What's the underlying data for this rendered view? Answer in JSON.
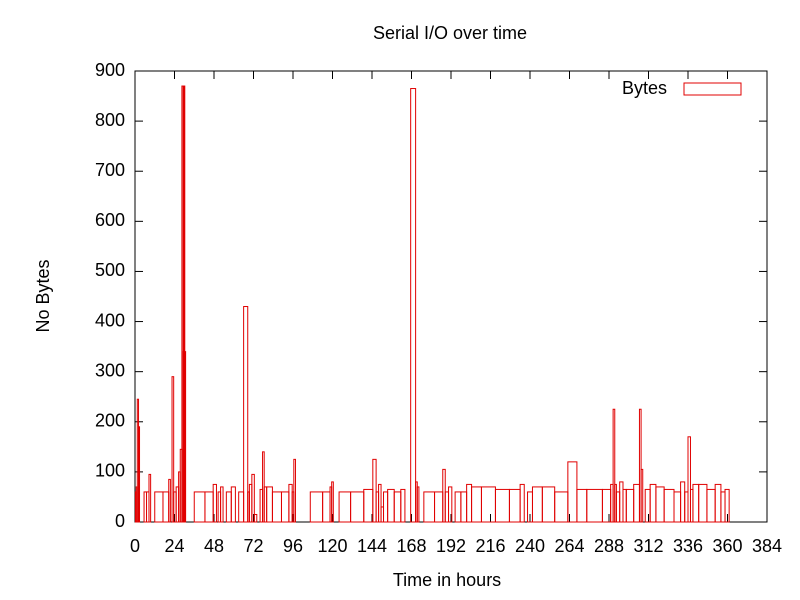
{
  "chart_data": {
    "type": "bar",
    "title": "Serial I/O over time",
    "x_label": "Time in hours",
    "y_label": "No Bytes",
    "series": [
      {
        "name": "Bytes",
        "color": "#e00000",
        "x": [
          0.5,
          1,
          1.8,
          2.5,
          3,
          5,
          6,
          8,
          9,
          10,
          14,
          20,
          21,
          22,
          23,
          24,
          26,
          27,
          28,
          29,
          29.5,
          30,
          30.5,
          31,
          33,
          39,
          46,
          49,
          50,
          51,
          53,
          54,
          57,
          60,
          62,
          64,
          68,
          69,
          70,
          72,
          73,
          75,
          77,
          78,
          79,
          81,
          86,
          92,
          95,
          96,
          97,
          98,
          103,
          110,
          118,
          119,
          120,
          121,
          127,
          135,
          143,
          146,
          147,
          149,
          150,
          152,
          155,
          160,
          163,
          165,
          170,
          171,
          172,
          173,
          178,
          186,
          188,
          189,
          192,
          193,
          196,
          200,
          203,
          206,
          215,
          223,
          232,
          236,
          237,
          240,
          243,
          252,
          258,
          268,
          269,
          280,
          288,
          290,
          291,
          292,
          293,
          296,
          297,
          300,
          306,
          307,
          308,
          309,
          311,
          315,
          318,
          325,
          330,
          333,
          335,
          337,
          338,
          340,
          345,
          350,
          355,
          357,
          360,
          362
        ],
        "values": [
          60,
          70,
          245,
          190,
          0,
          0,
          60,
          60,
          95,
          0,
          60,
          60,
          85,
          0,
          290,
          60,
          70,
          100,
          145,
          870,
          340,
          870,
          340,
          0,
          0,
          60,
          60,
          75,
          0,
          60,
          70,
          0,
          60,
          70,
          0,
          60,
          430,
          60,
          75,
          95,
          15,
          0,
          65,
          140,
          70,
          70,
          60,
          60,
          75,
          60,
          125,
          0,
          0,
          60,
          60,
          70,
          80,
          0,
          60,
          60,
          65,
          125,
          60,
          75,
          30,
          60,
          65,
          60,
          65,
          0,
          865,
          80,
          70,
          0,
          60,
          60,
          105,
          60,
          70,
          0,
          60,
          60,
          75,
          70,
          70,
          65,
          65,
          75,
          0,
          60,
          70,
          70,
          60,
          120,
          65,
          65,
          65,
          75,
          225,
          75,
          60,
          80,
          65,
          65,
          75,
          225,
          105,
          0,
          65,
          75,
          70,
          65,
          60,
          80,
          60,
          170,
          65,
          75,
          75,
          65,
          75,
          60,
          65,
          0
        ]
      }
    ],
    "xlim": [
      0,
      384
    ],
    "xticks": [
      0,
      24,
      48,
      72,
      96,
      120,
      144,
      168,
      192,
      216,
      240,
      264,
      288,
      312,
      336,
      360,
      384
    ],
    "ylim": [
      0,
      900
    ],
    "yticks": [
      0,
      100,
      200,
      300,
      400,
      500,
      600,
      700,
      800,
      900
    ],
    "legend": "upper right"
  }
}
